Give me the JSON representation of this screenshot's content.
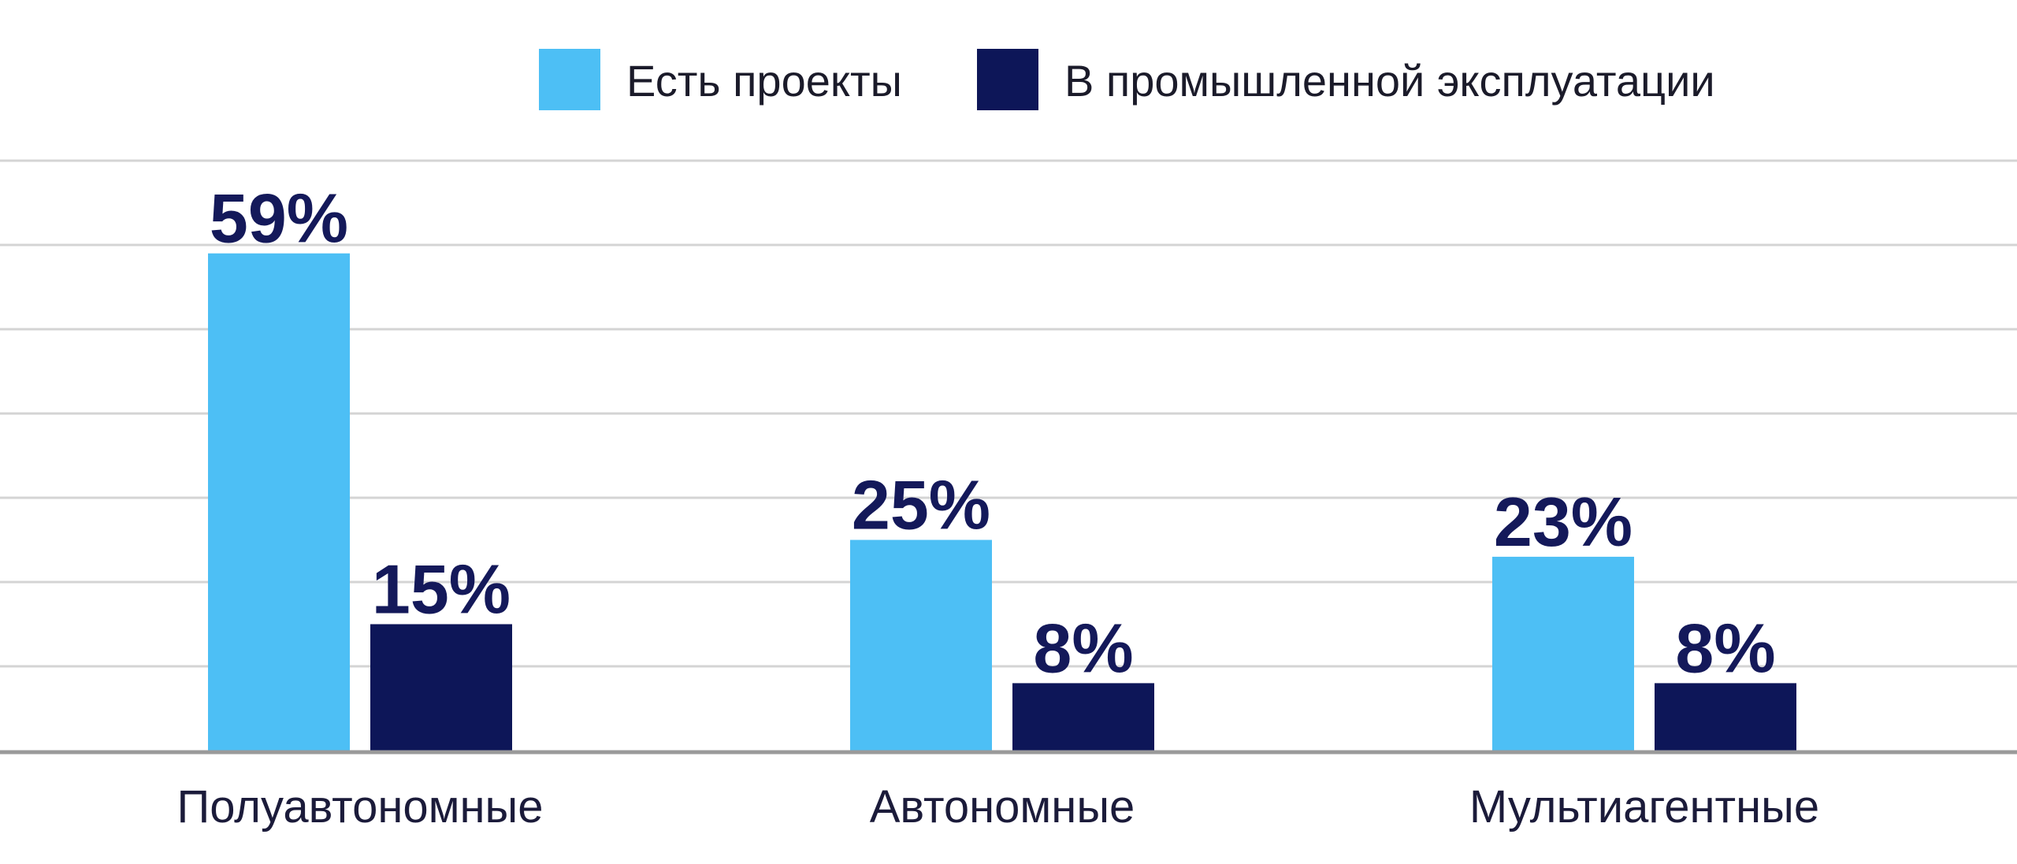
{
  "chart_data": {
    "type": "bar",
    "categories": [
      "Полуавтономные",
      "Автономные",
      "Мультиагентные"
    ],
    "series": [
      {
        "name": "Есть проекты",
        "values": [
          59,
          25,
          23
        ],
        "labels": [
          "59%",
          "25%",
          "23%"
        ],
        "color": "#4dbff5"
      },
      {
        "name": "В промышленной эксплуатации",
        "values": [
          15,
          8,
          8
        ],
        "labels": [
          "15%",
          "8%",
          "8%"
        ],
        "color": "#0d1658"
      }
    ],
    "title": "",
    "xlabel": "",
    "ylabel": "",
    "ylim": [
      0,
      80
    ],
    "grid": true,
    "legend_position": "top-center",
    "colors": {
      "grid": "#d4d4d4",
      "axis": "#9a9a9a",
      "value_label": "#14195a"
    }
  }
}
